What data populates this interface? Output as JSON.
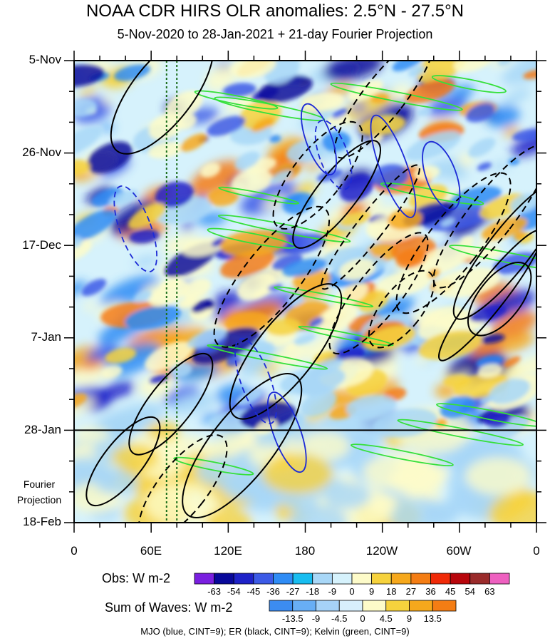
{
  "chart_data": {
    "type": "heatmap",
    "title": "NOAA CDR HIRS OLR anomalies: 2.5°N - 27.5°N",
    "subtitle": "5-Nov-2020 to 28-Jan-2021 + 21-day Fourier Projection",
    "y_ticks": [
      "5-Nov",
      "26-Nov",
      "17-Dec",
      "7-Jan",
      "28-Jan",
      "18-Feb"
    ],
    "x_ticks": [
      "0",
      "60E",
      "120E",
      "180",
      "120W",
      "60W",
      "0"
    ],
    "x_range_deg": [
      0,
      360
    ],
    "y_range_days": [
      0,
      105
    ],
    "observed_end_day": 84,
    "fourier_label_line1": "Fourier",
    "fourier_label_line2": "Projection",
    "reference_longitudes_deg": [
      72,
      80
    ],
    "obs_colorbar": {
      "title": "Obs: W m-2",
      "levels": [
        "-63",
        "-54",
        "-45",
        "-36",
        "-27",
        "-18",
        "-9",
        "0",
        "9",
        "18",
        "27",
        "36",
        "45",
        "54",
        "63"
      ],
      "colors": [
        "#7a1fe0",
        "#08089a",
        "#1e22c8",
        "#3c5ae6",
        "#2f8cf5",
        "#18bdf0",
        "#a8d7f7",
        "#d6f2fc",
        "#fdfbc9",
        "#f6d23d",
        "#f6a81c",
        "#f47d14",
        "#f02a08",
        "#b8060c",
        "#9a2b2b",
        "#ee60c0"
      ]
    },
    "waves_colorbar": {
      "title": "Sum of Waves: W m-2",
      "levels": [
        "-13.5",
        "-9",
        "-4.5",
        "0",
        "4.5",
        "9",
        "13.5"
      ],
      "colors": [
        "#3c8cf0",
        "#68aef5",
        "#a6d2f8",
        "#d8effc",
        "#fdfbc9",
        "#f6d23d",
        "#f6a81c",
        "#f47d14"
      ]
    },
    "footer": "MJO (blue, CINT=9); ER (black, CINT=9); Kelvin (green, CINT=9)",
    "series_colors": {
      "mjo": "#1d2bd6",
      "er": "#000000",
      "kelvin": "#35e03a",
      "reference": "#1a6e1a"
    }
  }
}
